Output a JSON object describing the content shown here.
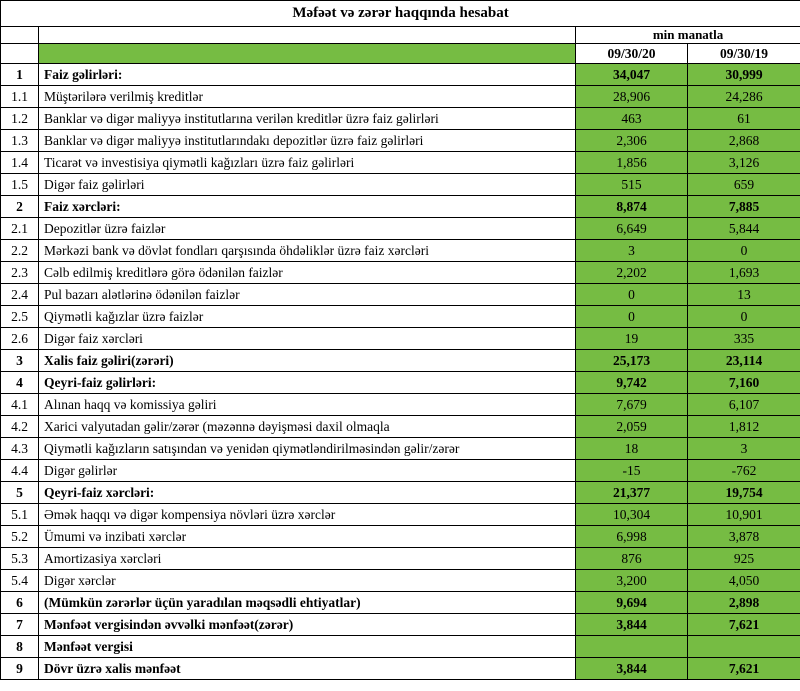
{
  "title": "Məfəət və zərər haqqında hesabat",
  "unit_label": "min manatla",
  "columns": [
    "09/30/20",
    "09/30/19"
  ],
  "colors": {
    "value_cell_green": "#76BC43",
    "border": "#000000",
    "background": "#FFFFFF"
  },
  "rows": [
    {
      "num": "1",
      "label": "Faiz gəlirləri:",
      "v1": "34,047",
      "v2": "30,999",
      "bold": true
    },
    {
      "num": "1.1",
      "label": "Müştərilərə verilmiş kreditlər",
      "v1": "28,906",
      "v2": "24,286",
      "bold": false
    },
    {
      "num": "1.2",
      "label": "Banklar və digər maliyyə institutlarına verilən kreditlər üzrə faiz gəlirləri",
      "v1": "463",
      "v2": "61",
      "bold": false
    },
    {
      "num": "1.3",
      "label": "Banklar və digər maliyyə institutlarındakı depozitlər üzrə faiz gəlirləri",
      "v1": "2,306",
      "v2": "2,868",
      "bold": false
    },
    {
      "num": "1.4",
      "label": "Ticarət və investisiya qiymətli kağızları üzrə faiz gəlirləri",
      "v1": "1,856",
      "v2": "3,126",
      "bold": false
    },
    {
      "num": "1.5",
      "label": "Digər faiz gəlirləri",
      "v1": "515",
      "v2": "659",
      "bold": false
    },
    {
      "num": "2",
      "label": "Faiz xərcləri:",
      "v1": "8,874",
      "v2": "7,885",
      "bold": true
    },
    {
      "num": "2.1",
      "label": "Depozitlər üzrə faizlər",
      "v1": "6,649",
      "v2": "5,844",
      "bold": false
    },
    {
      "num": "2.2",
      "label": "Mərkəzi bank və dövlət fondları qarşısında öhdəliklər üzrə faiz xərcləri",
      "v1": "3",
      "v2": "0",
      "bold": false
    },
    {
      "num": "2.3",
      "label": "Cəlb edilmiş kreditlərə görə ödənilən faizlər",
      "v1": "2,202",
      "v2": "1,693",
      "bold": false
    },
    {
      "num": "2.4",
      "label": "Pul bazarı alətlərinə ödənilən faizlər",
      "v1": "0",
      "v2": "13",
      "bold": false
    },
    {
      "num": "2.5",
      "label": "Qiymətli kağızlar üzrə faizlər",
      "v1": "0",
      "v2": "0",
      "bold": false
    },
    {
      "num": "2.6",
      "label": "Digər faiz xərcləri",
      "v1": "19",
      "v2": "335",
      "bold": false
    },
    {
      "num": "3",
      "label": "Xalis faiz gəliri(zərəri)",
      "v1": "25,173",
      "v2": "23,114",
      "bold": true
    },
    {
      "num": "4",
      "label": "Qeyri-faiz gəlirləri:",
      "v1": "9,742",
      "v2": "7,160",
      "bold": true
    },
    {
      "num": "4.1",
      "label": "Alınan haqq və komissiya gəliri",
      "v1": "7,679",
      "v2": "6,107",
      "bold": false
    },
    {
      "num": "4.2",
      "label": "Xarici valyutadan gəlir/zərər (məzənnə dəyişməsi daxil olmaqla",
      "v1": "2,059",
      "v2": "1,812",
      "bold": false
    },
    {
      "num": "4.3",
      "label": "Qiymətli kağızların satışından və yenidən qiymətləndirilməsindən gəlir/zərər",
      "v1": "18",
      "v2": "3",
      "bold": false
    },
    {
      "num": "4.4",
      "label": "Digər gəlirlər",
      "v1": "-15",
      "v2": "-762",
      "bold": false
    },
    {
      "num": "5",
      "label": "Qeyri-faiz xərcləri:",
      "v1": "21,377",
      "v2": "19,754",
      "bold": true
    },
    {
      "num": "5.1",
      "label": "Əmək haqqı və digər kompensiya növləri üzrə xərclər",
      "v1": "10,304",
      "v2": "10,901",
      "bold": false
    },
    {
      "num": "5.2",
      "label": "Ümumi və inzibati xərclər",
      "v1": "6,998",
      "v2": "3,878",
      "bold": false
    },
    {
      "num": "5.3",
      "label": "Amortizasiya xərcləri",
      "v1": "876",
      "v2": "925",
      "bold": false
    },
    {
      "num": "5.4",
      "label": "Digər xərclər",
      "v1": "3,200",
      "v2": "4,050",
      "bold": false
    },
    {
      "num": "6",
      "label": "(Mümkün zərərlər üçün yaradılan məqsədli ehtiyatlar)",
      "v1": "9,694",
      "v2": "2,898",
      "bold": true
    },
    {
      "num": "7",
      "label": "Mənfəət vergisindən əvvəlki mənfəət(zərər)",
      "v1": "3,844",
      "v2": "7,621",
      "bold": true
    },
    {
      "num": "8",
      "label": "Mənfəət vergisi",
      "v1": "",
      "v2": "",
      "bold": true
    },
    {
      "num": "9",
      "label": "Dövr üzrə xalis mənfəət",
      "v1": "3,844",
      "v2": "7,621",
      "bold": true
    }
  ]
}
